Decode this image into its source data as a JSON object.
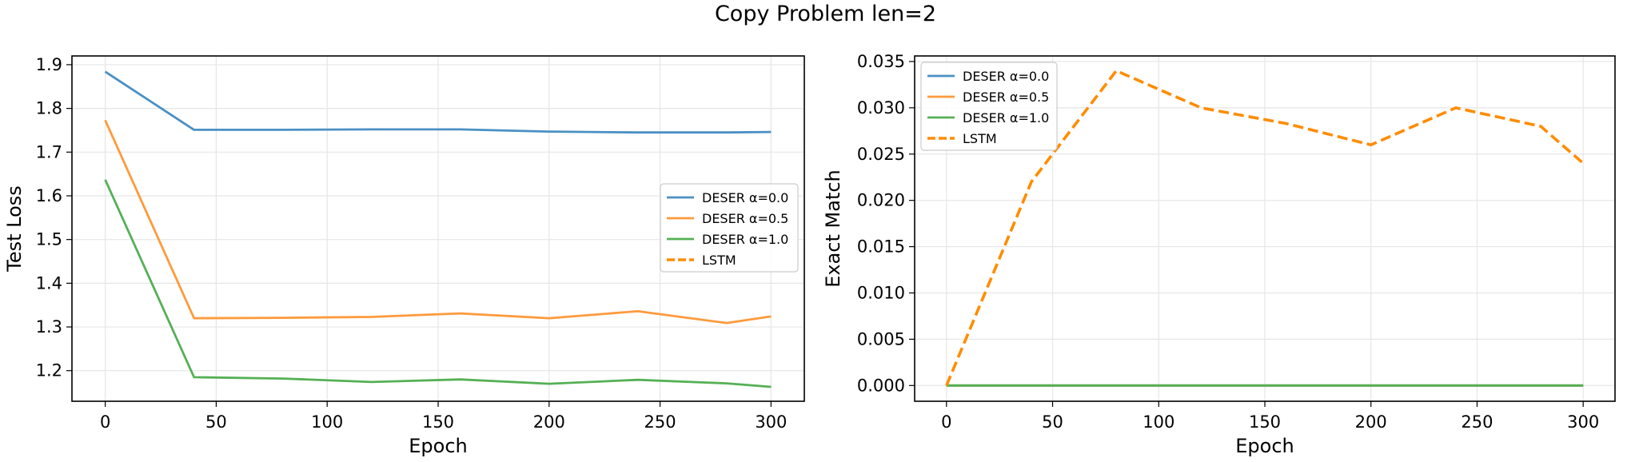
{
  "figure": {
    "title": "Copy Problem len=2"
  },
  "colors": {
    "alpha0": "#4a90c4",
    "alpha05": "#ff9a3c",
    "alpha1": "#55b055",
    "lstm": "#ff8c00",
    "grid": "#e6e6e6"
  },
  "chart_data": [
    {
      "type": "line",
      "xlabel": "Epoch",
      "ylabel": "Test Loss",
      "xlim": [
        -15,
        315
      ],
      "ylim": [
        1.13,
        1.92
      ],
      "xticks": [
        "0",
        "50",
        "100",
        "150",
        "200",
        "250",
        "300"
      ],
      "yticks": [
        "1.2",
        "1.3",
        "1.4",
        "1.5",
        "1.6",
        "1.7",
        "1.8",
        "1.9"
      ],
      "grid": true,
      "legend_position": "center-right",
      "series": [
        {
          "name": "DESER α=0.0",
          "x": [
            0,
            40,
            80,
            120,
            160,
            200,
            240,
            280,
            300
          ],
          "y": [
            1.884,
            1.751,
            1.751,
            1.752,
            1.752,
            1.747,
            1.745,
            1.745,
            1.746
          ],
          "color": "#4a90c4",
          "style": "solid"
        },
        {
          "name": "DESER α=0.5",
          "x": [
            0,
            40,
            80,
            120,
            160,
            200,
            240,
            280,
            300
          ],
          "y": [
            1.773,
            1.32,
            1.321,
            1.323,
            1.331,
            1.32,
            1.336,
            1.309,
            1.324
          ],
          "color": "#ff9a3c",
          "style": "solid"
        },
        {
          "name": "DESER α=1.0",
          "x": [
            0,
            40,
            80,
            120,
            160,
            200,
            240,
            280,
            300
          ],
          "y": [
            1.637,
            1.185,
            1.182,
            1.174,
            1.18,
            1.17,
            1.179,
            1.171,
            1.163
          ],
          "color": "#55b055",
          "style": "solid"
        },
        {
          "name": "LSTM",
          "x": [],
          "y": [],
          "color": "#ff8c00",
          "style": "dashed"
        }
      ]
    },
    {
      "type": "line",
      "xlabel": "Epoch",
      "ylabel": "Exact Match",
      "xlim": [
        -15,
        315
      ],
      "ylim": [
        -0.0017,
        0.0356
      ],
      "xticks": [
        "0",
        "50",
        "100",
        "150",
        "200",
        "250",
        "300"
      ],
      "yticks": [
        "0.000",
        "0.005",
        "0.010",
        "0.015",
        "0.020",
        "0.025",
        "0.030",
        "0.035"
      ],
      "grid": true,
      "legend_position": "top-left",
      "series": [
        {
          "name": "DESER α=0.0",
          "x": [
            0,
            40,
            80,
            120,
            160,
            200,
            240,
            280,
            300
          ],
          "y": [
            0,
            0,
            0,
            0,
            0,
            0,
            0,
            0,
            0
          ],
          "color": "#4a90c4",
          "style": "solid"
        },
        {
          "name": "DESER α=0.5",
          "x": [
            0,
            40,
            80,
            120,
            160,
            200,
            240,
            280,
            300
          ],
          "y": [
            0,
            0,
            0,
            0,
            0,
            0,
            0,
            0,
            0
          ],
          "color": "#ff9a3c",
          "style": "solid"
        },
        {
          "name": "DESER α=1.0",
          "x": [
            0,
            40,
            80,
            120,
            160,
            200,
            240,
            280,
            300
          ],
          "y": [
            0,
            0,
            0,
            0,
            0,
            0,
            0,
            0,
            0
          ],
          "color": "#55b055",
          "style": "solid"
        },
        {
          "name": "LSTM",
          "x": [
            0,
            40,
            80,
            120,
            160,
            200,
            240,
            280,
            300
          ],
          "y": [
            0,
            0.022,
            0.034,
            0.03,
            0.0283,
            0.026,
            0.03,
            0.028,
            0.024
          ],
          "color": "#ff8c00",
          "style": "dashed"
        }
      ]
    }
  ]
}
